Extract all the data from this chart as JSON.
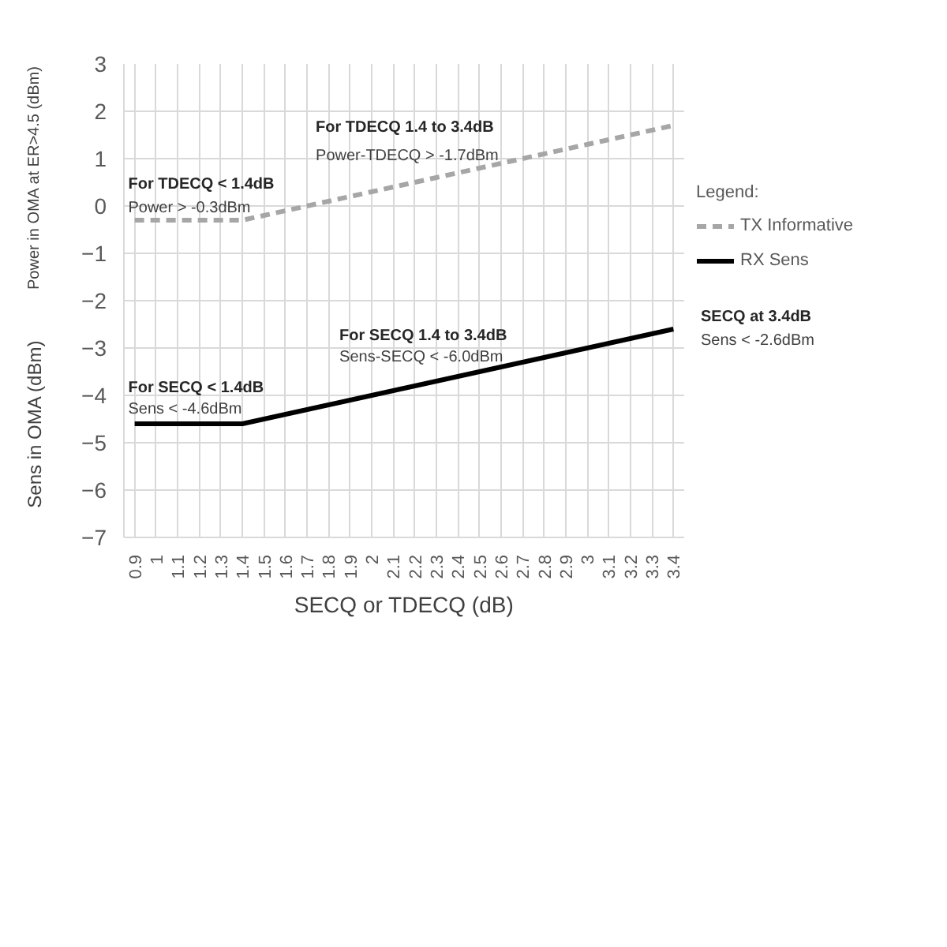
{
  "chart_data": {
    "type": "line",
    "xlabel": "SECQ or TDECQ (dB)",
    "ylabel": "Power in OMA at ER>4.5 (dBm)",
    "legend_title": "Legend:",
    "categories": [
      "0.9",
      "1",
      "1.1",
      "1.2",
      "1.3",
      "1.4",
      "1.5",
      "1.6",
      "1.7",
      "1.8",
      "1.9",
      "2",
      "2.1",
      "2.2",
      "2.3",
      "2.4",
      "2.5",
      "2.6",
      "2.7",
      "2.8",
      "2.9",
      "3",
      "3.1",
      "3.2",
      "3.3",
      "3.4"
    ],
    "series": [
      {
        "name": "TX Informative",
        "color": "#a6a6a6",
        "line_style": "dashed",
        "values": [
          -0.3,
          -0.3,
          -0.3,
          -0.3,
          -0.3,
          -0.3,
          -0.2,
          -0.1,
          0.0,
          0.1,
          0.2,
          0.3,
          0.4,
          0.5,
          0.6,
          0.7,
          0.8,
          0.9,
          1.0,
          1.1,
          1.2,
          1.3,
          1.4,
          1.5,
          1.6,
          1.7
        ]
      },
      {
        "name": "RX Sens",
        "color": "#000000",
        "line_style": "solid",
        "values": [
          -4.6,
          -4.6,
          -4.6,
          -4.6,
          -4.6,
          -4.6,
          -4.5,
          -4.4,
          -4.3,
          -4.2,
          -4.1,
          -4.0,
          -3.9,
          -3.8,
          -3.7,
          -3.6,
          -3.5,
          -3.4,
          -3.3,
          -3.2,
          -3.1,
          -3.0,
          -2.9,
          -2.8,
          -2.7,
          -2.6
        ]
      }
    ],
    "ylim": [
      -7,
      3
    ],
    "yticks": [
      -7,
      -6,
      -5,
      -4,
      -3,
      -2,
      -1,
      0,
      1,
      2,
      3
    ],
    "grid": true,
    "legend": "right",
    "marker": "none",
    "annotations": [
      "Sens in OMA (dBm)",
      "For TDECQ < 1.4dB",
      "Power > -0.3dBm",
      "For TDECQ 1.4 to 3.4dB",
      "Power-TDECQ > -1.7dBm",
      "For SECQ < 1.4dB",
      "Sens < -4.6dBm",
      "For SECQ 1.4 to 3.4dB",
      "Sens-SECQ < -6.0dBm",
      "SECQ at 3.4dB",
      "Sens < -2.6dBm"
    ]
  }
}
